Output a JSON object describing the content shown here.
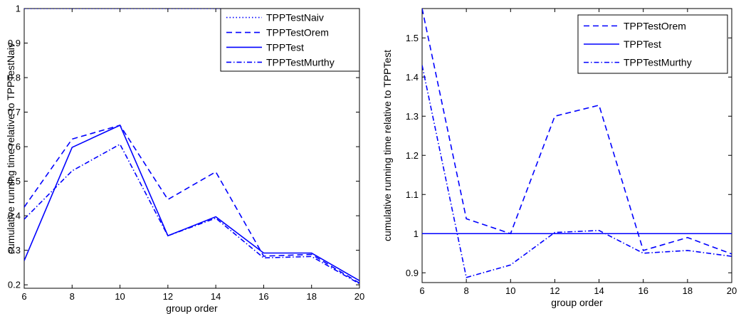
{
  "chart_data": [
    {
      "type": "line",
      "title": "",
      "xlabel": "group order",
      "ylabel": "cumulative running time relative to TPPTestNaiv",
      "xlim": [
        6,
        20
      ],
      "ylim": [
        0.19,
        1.0
      ],
      "xticks": [
        6,
        8,
        10,
        12,
        14,
        16,
        18,
        20
      ],
      "yticks": [
        0.2,
        0.3,
        0.4,
        0.5,
        0.6,
        0.7,
        0.8,
        0.9,
        1
      ],
      "x": [
        6,
        8,
        10,
        12,
        14,
        16,
        18,
        20
      ],
      "grid": false,
      "legend_position": "top-right",
      "series": [
        {
          "name": "TPPTestNaiv",
          "style": "dotted",
          "values": [
            1,
            1,
            1,
            1,
            1,
            1,
            1,
            1
          ]
        },
        {
          "name": "TPPTestOrem",
          "style": "dashed",
          "values": [
            0.425,
            0.622,
            0.662,
            0.447,
            0.527,
            0.283,
            0.288,
            0.205
          ]
        },
        {
          "name": "TPPTest",
          "style": "solid",
          "values": [
            0.27,
            0.598,
            0.662,
            0.342,
            0.397,
            0.292,
            0.292,
            0.212
          ]
        },
        {
          "name": "TPPTestMurthy",
          "style": "dashdot",
          "values": [
            0.39,
            0.53,
            0.607,
            0.342,
            0.393,
            0.278,
            0.282,
            0.203
          ]
        }
      ]
    },
    {
      "type": "line",
      "title": "",
      "xlabel": "group order",
      "ylabel": "cumulative running time relative to TPPTest",
      "xlim": [
        6,
        20
      ],
      "ylim": [
        0.875,
        1.575
      ],
      "xticks": [
        6,
        8,
        10,
        12,
        14,
        16,
        18,
        20
      ],
      "yticks": [
        0.9,
        1,
        1.1,
        1.2,
        1.3,
        1.4,
        1.5
      ],
      "x": [
        6,
        8,
        10,
        12,
        14,
        16,
        18,
        20
      ],
      "grid": false,
      "legend_position": "top-right",
      "series": [
        {
          "name": "TPPTestOrem",
          "style": "dashed",
          "values": [
            1.575,
            1.038,
            1.0,
            1.3,
            1.328,
            0.957,
            0.99,
            0.948
          ]
        },
        {
          "name": "TPPTest",
          "style": "solid",
          "values": [
            1,
            1,
            1,
            1,
            1,
            1,
            1,
            1
          ]
        },
        {
          "name": "TPPTestMurthy",
          "style": "dashdot",
          "values": [
            1.43,
            0.888,
            0.92,
            1.003,
            1.008,
            0.95,
            0.957,
            0.942
          ]
        }
      ]
    }
  ],
  "colors": {
    "line": "#0000ff",
    "axis": "#000000",
    "background": "#ffffff"
  }
}
